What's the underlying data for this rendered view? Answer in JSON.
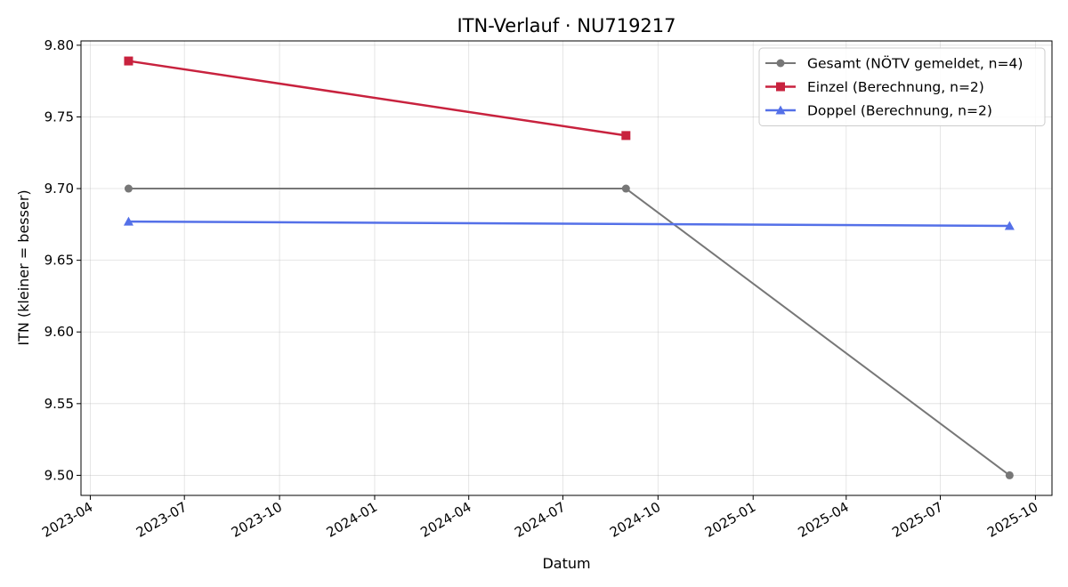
{
  "chart_data": {
    "type": "line",
    "title": "ITN-Verlauf · NU719217",
    "xlabel": "Datum",
    "ylabel": "ITN  (kleiner = besser)",
    "xlim": [
      "2023-03-23",
      "2025-10-17"
    ],
    "ylim": [
      9.486,
      9.803
    ],
    "x_ticks": [
      "2023-04",
      "2023-07",
      "2023-10",
      "2024-01",
      "2024-04",
      "2024-07",
      "2024-10",
      "2025-01",
      "2025-04",
      "2025-07",
      "2025-10"
    ],
    "y_ticks": [
      9.5,
      9.55,
      9.6,
      9.65,
      9.7,
      9.75,
      9.8
    ],
    "grid": true,
    "legend_position": "top-right",
    "series": [
      {
        "name": "Gesamt (NÖTV gemeldet, n=4)",
        "color": "#777777",
        "marker": "circle",
        "points": [
          {
            "x": "2023-05-08",
            "y": 9.7
          },
          {
            "x": "2024-08-31",
            "y": 9.7
          },
          {
            "x": "2025-09-06",
            "y": 9.5
          }
        ]
      },
      {
        "name": "Einzel (Berechnung, n=2)",
        "color": "#c8223e",
        "marker": "square",
        "points": [
          {
            "x": "2023-05-08",
            "y": 9.789
          },
          {
            "x": "2024-08-31",
            "y": 9.737
          }
        ]
      },
      {
        "name": "Doppel (Berechnung, n=2)",
        "color": "#5470e8",
        "marker": "triangle",
        "points": [
          {
            "x": "2023-05-08",
            "y": 9.677
          },
          {
            "x": "2025-09-06",
            "y": 9.674
          }
        ]
      }
    ]
  }
}
